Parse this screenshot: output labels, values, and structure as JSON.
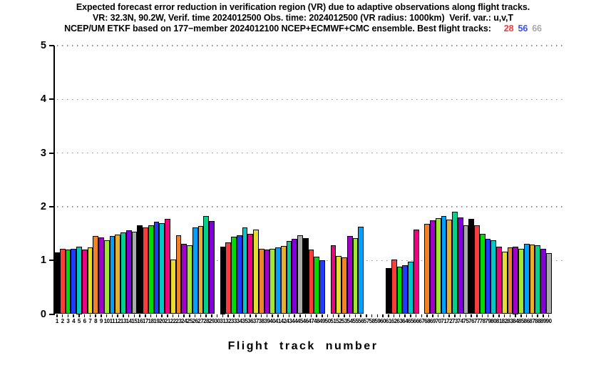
{
  "title": {
    "line1": "Expected forecast error reduction in verification region (VR) due to adaptive observations along flight tracks.",
    "line2": "VR: 32.3N, 90.2W, Verif. time 2024012500 Obs. time: 2024012500 (VR radius: 1000km)  Verif. var.: u,v,T",
    "line3": "NCEP/UM ETKF based on 177−member 2024012100 NCEP+ECMWF+CMC ensemble. Best flight tracks:",
    "best_tracks": [
      {
        "label": "28",
        "color": "#f23b3b"
      },
      {
        "label": "56",
        "color": "#3b4df2"
      },
      {
        "label": "66",
        "color": "#a8a8a8"
      }
    ]
  },
  "xlabel": "Flight track number",
  "chart_data": {
    "type": "bar",
    "title": "Expected forecast error reduction in verification region (VR) due to adaptive observations along flight tracks.",
    "xlabel": "Flight track number",
    "ylabel": "",
    "ylim": [
      0,
      5
    ],
    "yticks": [
      0,
      1,
      2,
      3,
      4,
      5
    ],
    "x_range": [
      1,
      90
    ],
    "missing_tracks": [
      30,
      50,
      57,
      58,
      59,
      60,
      67
    ],
    "grid": "horizontal dotted gray lines at integer y values 1-5",
    "legend": "none",
    "palette_cycle_note": "bar color = palette[(track-1) % 15] (GrADS default rainbow)",
    "palette": [
      "#000000",
      "#fa3c3c",
      "#00dc00",
      "#1e3cff",
      "#00c8c8",
      "#f00082",
      "#e6dc32",
      "#f08228",
      "#a000c8",
      "#a0e632",
      "#00a0ff",
      "#e6af2d",
      "#00d28c",
      "#8200dc",
      "#aaaaaa"
    ],
    "values": [
      1.15,
      1.22,
      1.2,
      1.22,
      1.25,
      1.2,
      1.24,
      1.45,
      1.43,
      1.38,
      1.46,
      1.48,
      1.52,
      1.56,
      1.54,
      1.66,
      1.62,
      1.66,
      1.72,
      1.69,
      1.77,
      1.01,
      1.47,
      1.31,
      1.28,
      1.62,
      1.64,
      1.83,
      1.73,
      null,
      1.25,
      1.33,
      1.44,
      1.47,
      1.61,
      1.49,
      1.58,
      1.22,
      1.2,
      1.22,
      1.24,
      1.27,
      1.36,
      1.4,
      1.47,
      1.42,
      1.2,
      1.07,
      1.0,
      null,
      1.28,
      1.08,
      1.06,
      1.45,
      1.42,
      1.63,
      null,
      null,
      null,
      null,
      0.86,
      1.02,
      0.88,
      0.91,
      0.97,
      1.58,
      null,
      1.68,
      1.74,
      1.78,
      1.83,
      1.76,
      1.9,
      1.8,
      1.66,
      1.77,
      1.65,
      1.49,
      1.4,
      1.38,
      1.26,
      1.16,
      1.24,
      1.25,
      1.21,
      1.31,
      1.3,
      1.28,
      1.21,
      1.13
    ]
  }
}
